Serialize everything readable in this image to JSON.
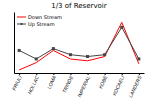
{
  "chart_data": {
    "type": "line",
    "title": "1/3 of Reservoir",
    "categories": [
      "FRIULI",
      "HOLLAC",
      "LOMA",
      "TRINDE",
      "IMPERIAL",
      "KOBE",
      "KOCAELI",
      "LANDERS"
    ],
    "series": [
      {
        "name": "Down Stream",
        "color": "#ff0000",
        "values": [
          2.0,
          3.2,
          5.2,
          3.8,
          3.5,
          4.2,
          9.8,
          3.0
        ]
      },
      {
        "name": "Up Stream",
        "color": "#444444",
        "marker": "square",
        "values": [
          5.2,
          3.8,
          5.5,
          4.5,
          4.2,
          4.5,
          9.0,
          3.8
        ]
      }
    ],
    "ylim": [
      1.5,
      11.5
    ],
    "tick_labels": "x",
    "legend": "upper-left"
  }
}
